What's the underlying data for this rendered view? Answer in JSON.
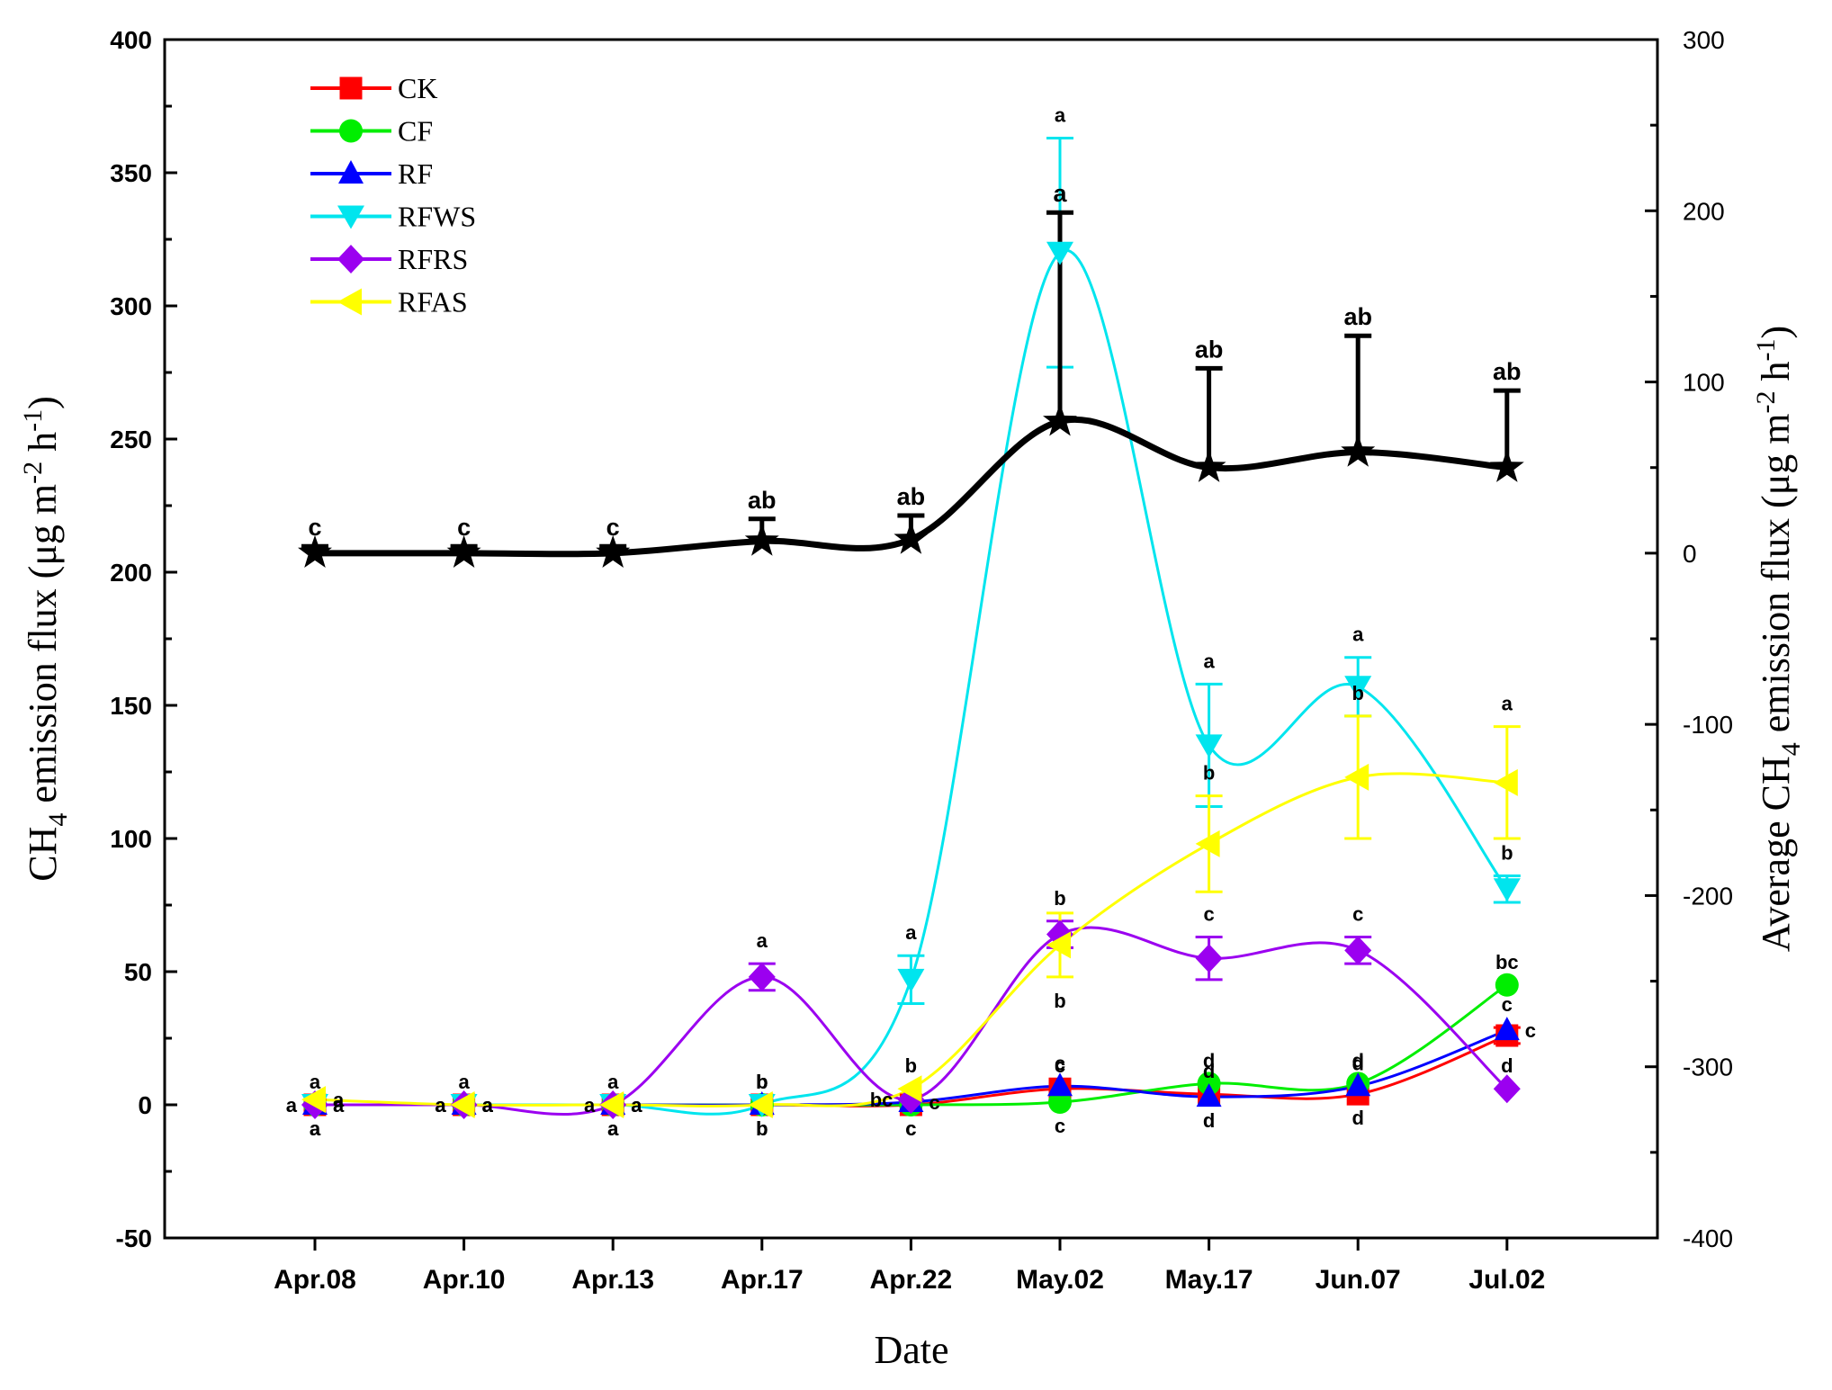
{
  "chart_data": {
    "type": "line",
    "xlabel": "Date",
    "ylabel_parts": [
      "CH",
      "4",
      " emission flux (μg m",
      "-2",
      " h",
      "-1",
      ")"
    ],
    "y2label_parts": [
      "Average CH",
      "4",
      " emission flux (μg m",
      "-2",
      " h",
      "-1",
      ")"
    ],
    "categories": [
      "Apr.08",
      "Apr.10",
      "Apr.13",
      "Apr.17",
      "Apr.22",
      "May.02",
      "May.17",
      "Jun.07",
      "Jul.02"
    ],
    "ylim": [
      -50,
      400
    ],
    "y_ticks": [
      -50,
      0,
      50,
      100,
      150,
      200,
      250,
      300,
      350,
      400
    ],
    "y2lim": [
      -400,
      300
    ],
    "y2_ticks": [
      -400,
      -300,
      -200,
      -100,
      0,
      100,
      200,
      300
    ],
    "legend_position": "top-left",
    "series": [
      {
        "name": "CK",
        "color": "#ff0000",
        "marker": "square",
        "axis": "left",
        "values": [
          0,
          0,
          0,
          0,
          0,
          6,
          4,
          4,
          26
        ],
        "errors": [
          0,
          0,
          0,
          0,
          0,
          0,
          0,
          0,
          3
        ],
        "labels": [
          "a",
          "a",
          "a",
          "b",
          "c",
          "c",
          "d",
          "d",
          "c"
        ],
        "label_side": [
          "below",
          "left",
          "below",
          "below",
          "below",
          "above",
          "above",
          "below",
          "above"
        ]
      },
      {
        "name": "CF",
        "color": "#00ee00",
        "marker": "circle",
        "axis": "left",
        "values": [
          0,
          0,
          0,
          0,
          0,
          1,
          8,
          8,
          45
        ],
        "errors": [
          0,
          0,
          0,
          0,
          0,
          0,
          0,
          0,
          0
        ],
        "labels": [
          "a",
          "a",
          "a",
          "b",
          "c",
          "c",
          "d",
          "d",
          "bc"
        ],
        "label_side": [
          "above",
          "above",
          "above",
          "above",
          "below",
          "below",
          "above",
          "above",
          "above"
        ]
      },
      {
        "name": "RF",
        "color": "#0000ff",
        "marker": "triangle-up",
        "axis": "left",
        "values": [
          0,
          0,
          0,
          0,
          1,
          7,
          3,
          7,
          28
        ],
        "errors": [
          0,
          0,
          0,
          0,
          0,
          0,
          0,
          0,
          0
        ],
        "labels": [
          "a",
          "a",
          "a",
          "b",
          "c",
          "c",
          "d",
          "d",
          "c"
        ],
        "label_side": [
          "below",
          "right",
          "below",
          "below",
          "right",
          "above",
          "below",
          "above",
          "right"
        ]
      },
      {
        "name": "RFWS",
        "color": "#00e5ee",
        "marker": "triangle-down",
        "axis": "left",
        "values": [
          0,
          0,
          0,
          0,
          47,
          320,
          135,
          157,
          81
        ],
        "errors": [
          0,
          0,
          0,
          0,
          9,
          43,
          23,
          11,
          5
        ],
        "labels": [
          "a",
          "a",
          "a",
          "b",
          "a",
          "a",
          "a",
          "a",
          "b"
        ],
        "label_side": [
          "left",
          "left",
          "left",
          "above",
          "above",
          "above",
          "above",
          "above",
          "above"
        ]
      },
      {
        "name": "RFRS",
        "color": "#9b00f0",
        "marker": "diamond",
        "axis": "left",
        "values": [
          0,
          0,
          0,
          48,
          2,
          64,
          55,
          58,
          6
        ],
        "errors": [
          0,
          0,
          0,
          5,
          0,
          5,
          8,
          5,
          0
        ],
        "labels": [
          "a",
          "a",
          "a",
          "a",
          "bc",
          "b",
          "c",
          "c",
          "d"
        ],
        "label_side": [
          "right",
          "right",
          "right",
          "above",
          "left",
          "above",
          "above",
          "above",
          "above"
        ]
      },
      {
        "name": "RFAS",
        "color": "#ffff00",
        "marker": "triangle-left",
        "axis": "left",
        "values": [
          2,
          0,
          0,
          0,
          6,
          60,
          98,
          123,
          121
        ],
        "errors": [
          0,
          0,
          0,
          0,
          0,
          12,
          18,
          23,
          21
        ],
        "labels": [
          "a",
          "a",
          "a",
          "b",
          "b",
          "b",
          "b",
          "b",
          "a"
        ],
        "label_side": [
          "right",
          "right",
          "right",
          "above",
          "above",
          "below",
          "above",
          "above",
          "above"
        ]
      },
      {
        "name": "Average",
        "color": "#000000",
        "marker": "star",
        "axis": "right",
        "in_legend": false,
        "values": [
          0,
          0,
          0,
          7,
          8,
          77,
          50,
          59,
          50
        ],
        "errors": [
          4,
          4,
          4,
          13,
          14,
          122,
          58,
          68,
          45
        ],
        "labels": [
          "c",
          "c",
          "c",
          "ab",
          "ab",
          "a",
          "ab",
          "ab",
          "ab"
        ]
      }
    ]
  }
}
